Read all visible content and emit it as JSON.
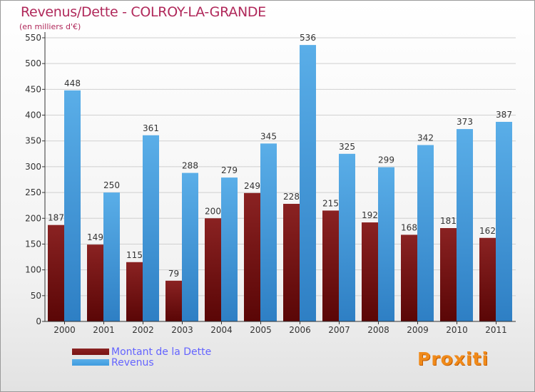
{
  "chart_data": {
    "type": "bar",
    "title": "Revenus/Dette - COLROY-LA-GRANDE",
    "subtitle": "(en milliers d'€)",
    "categories": [
      "2000",
      "2001",
      "2002",
      "2003",
      "2004",
      "2005",
      "2006",
      "2007",
      "2008",
      "2009",
      "2010",
      "2011"
    ],
    "series": [
      {
        "name": "Montant de la Dette",
        "color": "#7a1414",
        "values": [
          187,
          149,
          115,
          79,
          200,
          249,
          228,
          215,
          192,
          168,
          181,
          162
        ]
      },
      {
        "name": "Revenus",
        "color": "#3f9ce0",
        "values": [
          448,
          250,
          361,
          288,
          279,
          345,
          536,
          325,
          299,
          342,
          373,
          387
        ]
      }
    ],
    "ylim": [
      0,
      550
    ],
    "yticks": [
      0,
      50,
      100,
      150,
      200,
      250,
      300,
      350,
      400,
      450,
      500,
      550
    ],
    "grid": true,
    "legend": "bottom-left"
  },
  "logo_text": "Proxiti"
}
